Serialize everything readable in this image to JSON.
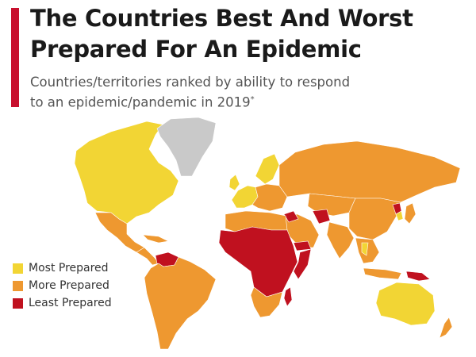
{
  "header": {
    "title_line1": "The Countries Best And Worst",
    "title_line2": "Prepared For An Epidemic",
    "subtitle_line1": "Countries/territories ranked by ability to respond",
    "subtitle_line2": "to an epidemic/pandemic in 2019",
    "subtitle_marker": "*"
  },
  "legend": {
    "items": [
      {
        "label": "Most Prepared",
        "color": "#f2d534"
      },
      {
        "label": "More Prepared",
        "color": "#ee9830"
      },
      {
        "label": "Least Prepared",
        "color": "#c0111f"
      }
    ]
  },
  "colors": {
    "accent": "#c8102e",
    "no_data": "#c9c9c9",
    "ocean": "#ffffff",
    "most_prepared": "#f2d534",
    "more_prepared": "#ee9830",
    "least_prepared": "#c0111f"
  },
  "map": {
    "regions": [
      {
        "name": "North America (USA & Canada)",
        "category": "most_prepared"
      },
      {
        "name": "Greenland",
        "category": "no_data"
      },
      {
        "name": "Mexico",
        "category": "more_prepared"
      },
      {
        "name": "Central America & Caribbean",
        "category": "more_prepared"
      },
      {
        "name": "Venezuela",
        "category": "least_prepared"
      },
      {
        "name": "South America",
        "category": "more_prepared"
      },
      {
        "name": "Western Europe",
        "category": "most_prepared"
      },
      {
        "name": "Scandinavia",
        "category": "most_prepared"
      },
      {
        "name": "Eastern Europe",
        "category": "more_prepared"
      },
      {
        "name": "Russia",
        "category": "more_prepared"
      },
      {
        "name": "Central Asia",
        "category": "more_prepared"
      },
      {
        "name": "China",
        "category": "more_prepared"
      },
      {
        "name": "North Korea",
        "category": "least_prepared"
      },
      {
        "name": "South Korea",
        "category": "most_prepared"
      },
      {
        "name": "Japan",
        "category": "more_prepared"
      },
      {
        "name": "Middle East",
        "category": "more_prepared"
      },
      {
        "name": "Syria",
        "category": "least_prepared"
      },
      {
        "name": "Afghanistan",
        "category": "least_prepared"
      },
      {
        "name": "Yemen",
        "category": "least_prepared"
      },
      {
        "name": "Somalia",
        "category": "least_prepared"
      },
      {
        "name": "India",
        "category": "more_prepared"
      },
      {
        "name": "Southeast Asia",
        "category": "more_prepared"
      },
      {
        "name": "Thailand",
        "category": "most_prepared"
      },
      {
        "name": "Papua New Guinea",
        "category": "least_prepared"
      },
      {
        "name": "Australia",
        "category": "most_prepared"
      },
      {
        "name": "New Zealand",
        "category": "more_prepared"
      },
      {
        "name": "North Africa",
        "category": "more_prepared"
      },
      {
        "name": "Sahel & Central Africa",
        "category": "least_prepared"
      },
      {
        "name": "Southern Africa",
        "category": "more_prepared"
      },
      {
        "name": "Madagascar",
        "category": "least_prepared"
      }
    ]
  }
}
